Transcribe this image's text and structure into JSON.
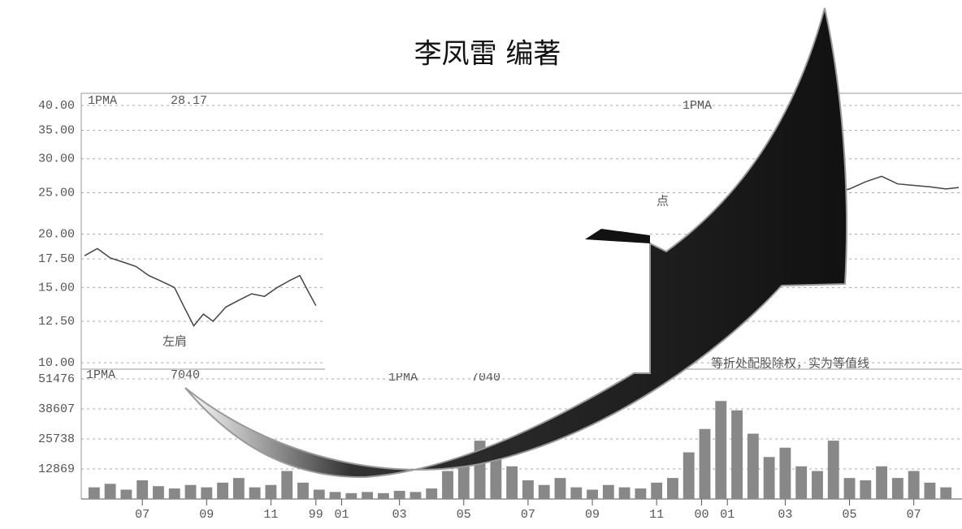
{
  "header": {
    "author": "李凤雷 编著"
  },
  "chart_data": [
    {
      "type": "line",
      "log_scale": true,
      "grid": true,
      "color": "#444",
      "annotations": [
        "1PMA",
        "28.17",
        "1PMA",
        "左肩",
        "点",
        "等折处配股除权，实为等值线"
      ],
      "series": [
        {
          "x": [
            5.2,
            5.6,
            6.0,
            6.4,
            6.8,
            7.2,
            7.6,
            8.0,
            8.3,
            8.6,
            8.9,
            9.2,
            9.6,
            10.0,
            10.4,
            10.8,
            11.2,
            11.6,
            11.9,
            12.2,
            12.4,
            null,
            26.0,
            26.5,
            27.0,
            27.5,
            28.0,
            28.5,
            29.0,
            29.5,
            30.0,
            30.5,
            31.0,
            31.5,
            32.0,
            32.4
          ],
          "values": [
            17.8,
            18.5,
            17.6,
            17.2,
            16.8,
            16.0,
            15.5,
            15.0,
            13.5,
            12.2,
            13.0,
            12.5,
            13.5,
            14.0,
            14.5,
            14.3,
            15.0,
            15.6,
            16.0,
            14.5,
            13.6,
            null,
            23.0,
            24.0,
            24.5,
            23.8,
            24.5,
            25.0,
            25.5,
            26.5,
            27.3,
            26.2,
            26.0,
            25.8,
            25.5,
            25.7
          ]
        }
      ],
      "xlim": [
        5.1,
        32.5
      ],
      "ylim": [
        9.66,
        42.7
      ],
      "yticks": [
        {
          "value": 10,
          "label": "10.00"
        },
        {
          "value": 12.5,
          "label": "12.50"
        },
        {
          "value": 15,
          "label": "15.00"
        },
        {
          "value": 17.5,
          "label": "17.50"
        },
        {
          "value": 20,
          "label": "20.00"
        },
        {
          "value": 25,
          "label": "25.00"
        },
        {
          "value": 30,
          "label": "30.00"
        },
        {
          "value": 35,
          "label": "35.00"
        },
        {
          "value": 40,
          "label": "40.00"
        }
      ]
    },
    {
      "type": "bar",
      "grid": true,
      "color": "#888",
      "annotations": [
        "1PMA",
        "7040",
        "1PMA",
        "7040"
      ],
      "x": [
        5.5,
        6,
        6.5,
        7,
        7.5,
        8,
        8.5,
        9,
        9.5,
        10,
        10.5,
        11,
        11.5,
        12,
        12.5,
        13,
        13.5,
        14,
        14.5,
        15,
        15.5,
        16,
        16.5,
        17,
        17.5,
        18,
        18.5,
        19,
        19.5,
        20,
        20.5,
        21,
        21.5,
        22,
        22.5,
        23,
        23.5,
        24,
        24.5,
        25,
        25.5,
        26,
        26.5,
        27,
        27.5,
        28,
        28.5,
        29,
        29.5,
        30,
        30.5,
        31,
        31.5,
        32
      ],
      "values": [
        5000,
        6500,
        4000,
        8000,
        5500,
        4500,
        6000,
        5000,
        7000,
        9000,
        5000,
        6000,
        12000,
        7000,
        4000,
        3000,
        2500,
        3000,
        2500,
        3500,
        3000,
        4500,
        12000,
        18000,
        25000,
        20000,
        14000,
        8000,
        6000,
        9000,
        5000,
        4000,
        6000,
        5000,
        4500,
        7000,
        9000,
        20000,
        30000,
        42000,
        38000,
        28000,
        18000,
        22000,
        14000,
        12000,
        25000,
        9000,
        8000,
        14000,
        9000,
        12000,
        7000,
        5000
      ],
      "xlim": [
        5.1,
        32.5
      ],
      "ylim": [
        0,
        55650
      ],
      "yticks": [
        12869,
        25738,
        38607,
        51476
      ],
      "xticks": [
        {
          "value": 7,
          "label": "07"
        },
        {
          "value": 9,
          "label": "09"
        },
        {
          "value": 11,
          "label": "11"
        },
        {
          "value": 12.4,
          "label": "99"
        },
        {
          "value": 13.2,
          "label": "01"
        },
        {
          "value": 15,
          "label": "03"
        },
        {
          "value": 17,
          "label": "05"
        },
        {
          "value": 19,
          "label": "07"
        },
        {
          "value": 21,
          "label": "09"
        },
        {
          "value": 23,
          "label": "11"
        },
        {
          "value": 24.4,
          "label": "00"
        },
        {
          "value": 25.2,
          "label": "01"
        },
        {
          "value": 27,
          "label": "03"
        },
        {
          "value": 29,
          "label": "05"
        },
        {
          "value": 31,
          "label": "07"
        }
      ]
    }
  ]
}
